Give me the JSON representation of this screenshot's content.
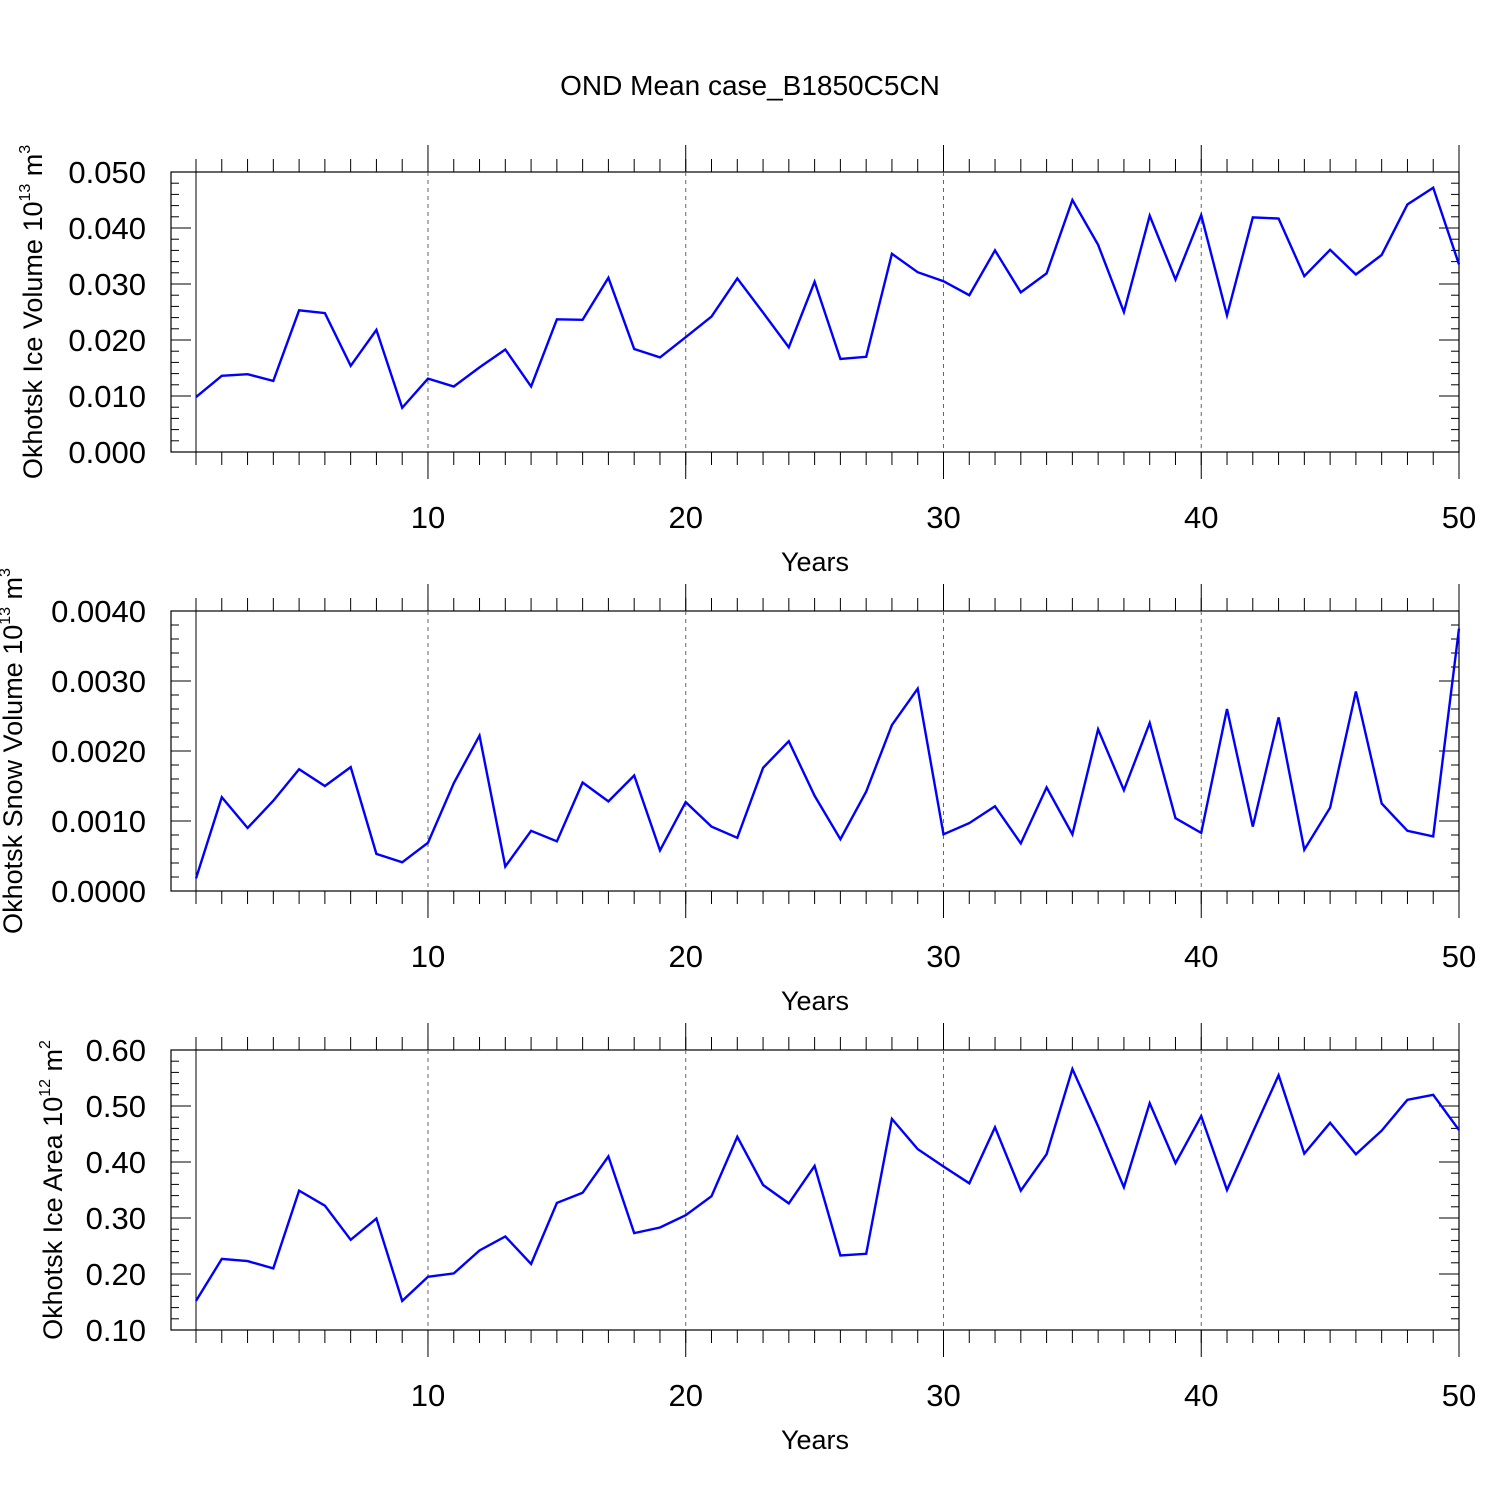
{
  "title": "OND Mean case_B1850C5CN",
  "line_color": "#0000ff",
  "chart_data": [
    {
      "type": "line",
      "title": "OND Mean case_B1850C5CN",
      "xlabel": "Years",
      "ylabel": "Okhotsk Ice Volume 10",
      "ylabel_sup": "13",
      "ylabel_unit": "m",
      "ylabel_unit_sup": "3",
      "xlim": [
        1,
        50
      ],
      "ylim": [
        0,
        0.05
      ],
      "yticks": [
        0,
        0.01,
        0.02,
        0.03,
        0.04,
        0.05
      ],
      "ytick_labels": [
        "0.000",
        "0.010",
        "0.020",
        "0.030",
        "0.040",
        "0.050"
      ],
      "yminor_step": 0.002,
      "xticks": [
        10,
        20,
        30,
        40,
        50
      ],
      "xtick_labels": [
        "10",
        "20",
        "30",
        "40",
        "50"
      ],
      "x_dashed_grid": [
        10,
        20,
        30,
        40
      ],
      "series": [
        {
          "name": "Okhotsk Ice Volume",
          "x": [
            1,
            2,
            3,
            4,
            5,
            6,
            7,
            8,
            9,
            10,
            11,
            12,
            13,
            14,
            15,
            16,
            17,
            18,
            19,
            20,
            21,
            22,
            23,
            24,
            25,
            26,
            27,
            28,
            29,
            30,
            31,
            32,
            33,
            34,
            35,
            36,
            37,
            38,
            39,
            40,
            41,
            42,
            43,
            44,
            45,
            46,
            47,
            48,
            49,
            50
          ],
          "values": [
            0.0098,
            0.0136,
            0.0139,
            0.0127,
            0.0253,
            0.0248,
            0.0154,
            0.0218,
            0.0079,
            0.0131,
            0.0117,
            0.0151,
            0.0183,
            0.0117,
            0.0237,
            0.0236,
            0.0311,
            0.0184,
            0.0169,
            0.0205,
            0.0242,
            0.031,
            0.0249,
            0.0187,
            0.0304,
            0.0166,
            0.017,
            0.0354,
            0.0321,
            0.0305,
            0.028,
            0.036,
            0.0285,
            0.0319,
            0.045,
            0.037,
            0.025,
            0.0422,
            0.0308,
            0.0423,
            0.0244,
            0.0419,
            0.0417,
            0.0314,
            0.0361,
            0.0317,
            0.0352,
            0.0442,
            0.0472,
            0.0335
          ]
        }
      ]
    },
    {
      "type": "line",
      "xlabel": "Years",
      "ylabel": "Okhotsk Snow Volume 10",
      "ylabel_sup": "13",
      "ylabel_unit": "m",
      "ylabel_unit_sup": "3",
      "xlim": [
        1,
        50
      ],
      "ylim": [
        0,
        0.004
      ],
      "yticks": [
        0,
        0.001,
        0.002,
        0.003,
        0.004
      ],
      "ytick_labels": [
        "0.0000",
        "0.0010",
        "0.0020",
        "0.0030",
        "0.0040"
      ],
      "yminor_step": 0.0002,
      "xticks": [
        10,
        20,
        30,
        40,
        50
      ],
      "xtick_labels": [
        "10",
        "20",
        "30",
        "40",
        "50"
      ],
      "x_dashed_grid": [
        10,
        20,
        30,
        40
      ],
      "series": [
        {
          "name": "Okhotsk Snow Volume",
          "x": [
            1,
            2,
            3,
            4,
            5,
            6,
            7,
            8,
            9,
            10,
            11,
            12,
            13,
            14,
            15,
            16,
            17,
            18,
            19,
            20,
            21,
            22,
            23,
            24,
            25,
            26,
            27,
            28,
            29,
            30,
            31,
            32,
            33,
            34,
            35,
            36,
            37,
            38,
            39,
            40,
            41,
            42,
            43,
            44,
            45,
            46,
            47,
            48,
            49,
            50
          ],
          "values": [
            0.00018,
            0.00134,
            0.0009,
            0.00129,
            0.00174,
            0.0015,
            0.00177,
            0.00053,
            0.00041,
            0.00069,
            0.00154,
            0.00222,
            0.00035,
            0.00086,
            0.00071,
            0.00155,
            0.00128,
            0.00165,
            0.00058,
            0.00127,
            0.00092,
            0.00076,
            0.00176,
            0.00214,
            0.00136,
            0.00074,
            0.00142,
            0.00237,
            0.00289,
            0.00081,
            0.00097,
            0.00121,
            0.00068,
            0.00148,
            0.00081,
            0.00231,
            0.00144,
            0.0024,
            0.00104,
            0.00083,
            0.0026,
            0.00092,
            0.00248,
            0.00059,
            0.00119,
            0.00285,
            0.00125,
            0.00086,
            0.00078,
            0.00375
          ]
        }
      ]
    },
    {
      "type": "line",
      "xlabel": "Years",
      "ylabel": "Okhotsk Ice Area 10",
      "ylabel_sup": "12",
      "ylabel_unit": "m",
      "ylabel_unit_sup": "2",
      "xlim": [
        1,
        50
      ],
      "ylim": [
        0.1,
        0.6
      ],
      "yticks": [
        0.1,
        0.2,
        0.3,
        0.4,
        0.5,
        0.6
      ],
      "ytick_labels": [
        "0.10",
        "0.20",
        "0.30",
        "0.40",
        "0.50",
        "0.60"
      ],
      "yminor_step": 0.02,
      "xticks": [
        10,
        20,
        30,
        40,
        50
      ],
      "xtick_labels": [
        "10",
        "20",
        "30",
        "40",
        "50"
      ],
      "x_dashed_grid": [
        10,
        20,
        30,
        40
      ],
      "series": [
        {
          "name": "Okhotsk Ice Area",
          "x": [
            1,
            2,
            3,
            4,
            5,
            6,
            7,
            8,
            9,
            10,
            11,
            12,
            13,
            14,
            15,
            16,
            17,
            18,
            19,
            20,
            21,
            22,
            23,
            24,
            25,
            26,
            27,
            28,
            29,
            30,
            31,
            32,
            33,
            34,
            35,
            36,
            37,
            38,
            39,
            40,
            41,
            42,
            43,
            44,
            45,
            46,
            47,
            48,
            49,
            50
          ],
          "values": [
            0.152,
            0.227,
            0.223,
            0.21,
            0.349,
            0.322,
            0.261,
            0.299,
            0.152,
            0.195,
            0.201,
            0.242,
            0.267,
            0.218,
            0.327,
            0.345,
            0.41,
            0.273,
            0.283,
            0.305,
            0.339,
            0.445,
            0.359,
            0.326,
            0.393,
            0.233,
            0.236,
            0.477,
            0.423,
            0.392,
            0.362,
            0.462,
            0.349,
            0.414,
            0.566,
            0.464,
            0.355,
            0.505,
            0.398,
            0.482,
            0.35,
            0.453,
            0.555,
            0.415,
            0.47,
            0.414,
            0.456,
            0.511,
            0.52,
            0.457
          ]
        }
      ]
    }
  ]
}
